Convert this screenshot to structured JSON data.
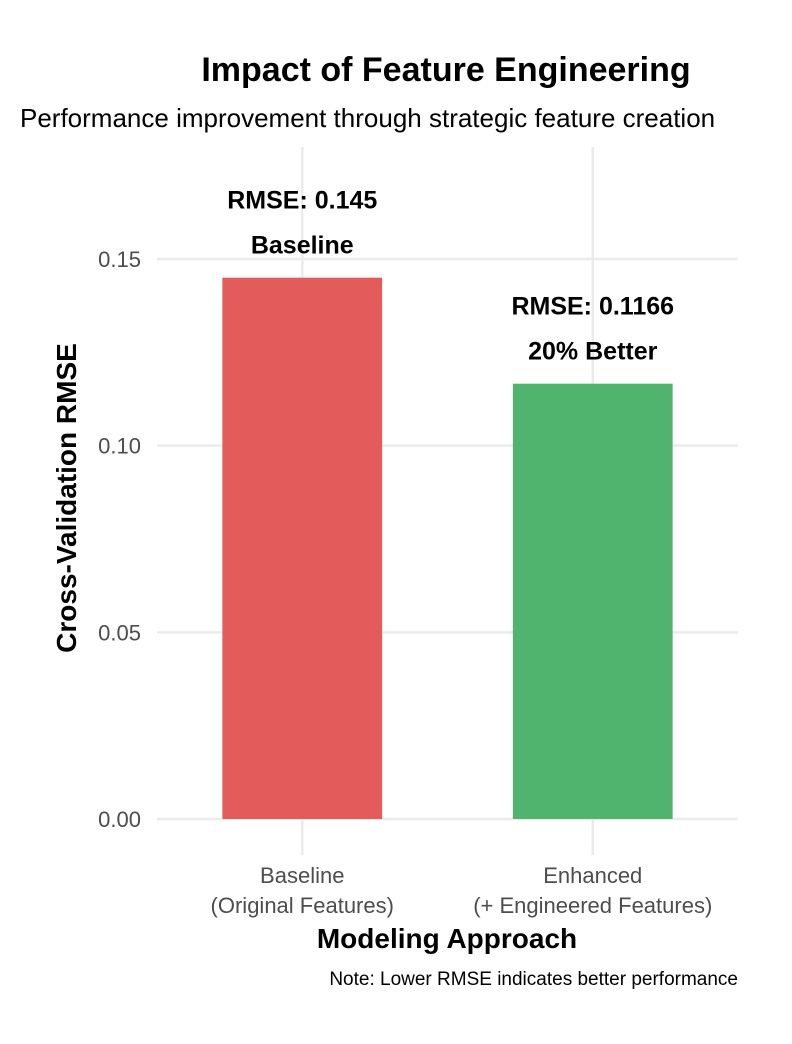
{
  "chart_data": {
    "type": "bar",
    "title": "Impact of Feature Engineering",
    "subtitle": "Performance improvement through strategic feature creation",
    "xlabel": "Modeling Approach",
    "ylabel": "Cross-Validation RMSE",
    "caption": "Note: Lower RMSE indicates better performance",
    "categories": [
      [
        "Baseline",
        "(Original Features)"
      ],
      [
        "Enhanced",
        "(+ Engineered Features)"
      ]
    ],
    "values": [
      0.145,
      0.1166
    ],
    "bar_labels": [
      [
        "RMSE: 0.145",
        "Baseline"
      ],
      [
        "RMSE: 0.1166",
        "20% Better"
      ]
    ],
    "colors": [
      "#e35b5b",
      "#50b46e"
    ],
    "ylim": [
      0,
      0.18
    ],
    "yticks": [
      0.0,
      0.05,
      0.1,
      0.15
    ],
    "ytick_labels": [
      "0.00",
      "0.05",
      "0.10",
      "0.15"
    ],
    "grid": true,
    "legend": "none"
  }
}
